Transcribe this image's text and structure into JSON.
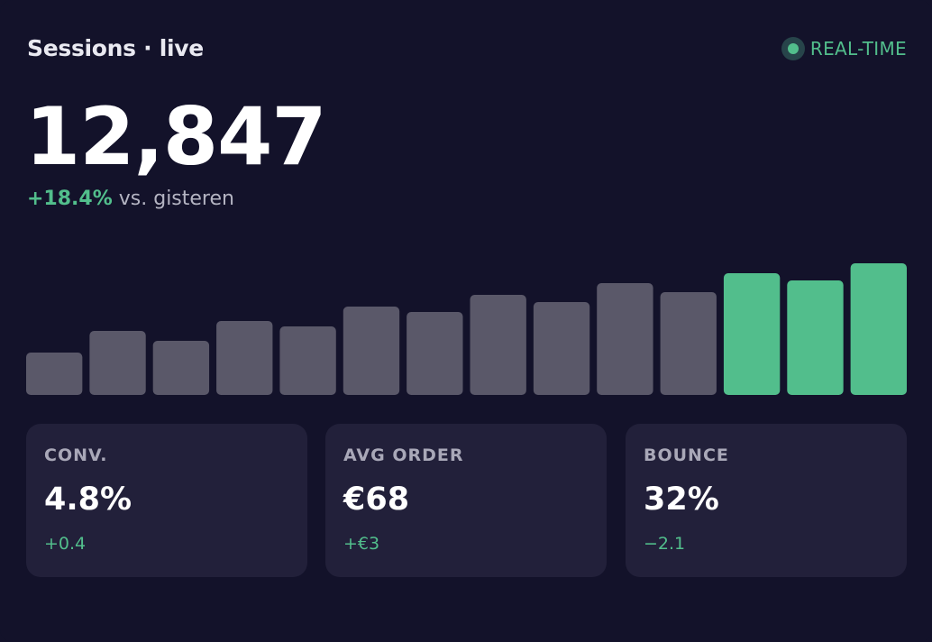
{
  "header": {
    "title": "Sessions · live",
    "badge": "REAL-TIME"
  },
  "summary": {
    "value": "12,847",
    "change": "+18.4%",
    "comparison": "vs. gisteren"
  },
  "colors": {
    "accent": "#52be8c",
    "bar_muted": "#5a5869",
    "background": "#13122a",
    "tile": "#22203a"
  },
  "chart_data": {
    "type": "bar",
    "values": [
      47,
      71,
      60,
      82,
      76,
      98,
      92,
      111,
      103,
      124,
      114,
      135,
      127,
      146
    ],
    "highlighted": [
      false,
      false,
      false,
      false,
      false,
      false,
      false,
      false,
      false,
      false,
      false,
      true,
      true,
      true
    ],
    "ylim": [
      0,
      158
    ]
  },
  "stats": [
    {
      "label": "CONV.",
      "value": "4.8%",
      "change": "+0.4"
    },
    {
      "label": "AVG ORDER",
      "value": "€68",
      "change": "+€3"
    },
    {
      "label": "BOUNCE",
      "value": "32%",
      "change": "−2.1"
    }
  ]
}
